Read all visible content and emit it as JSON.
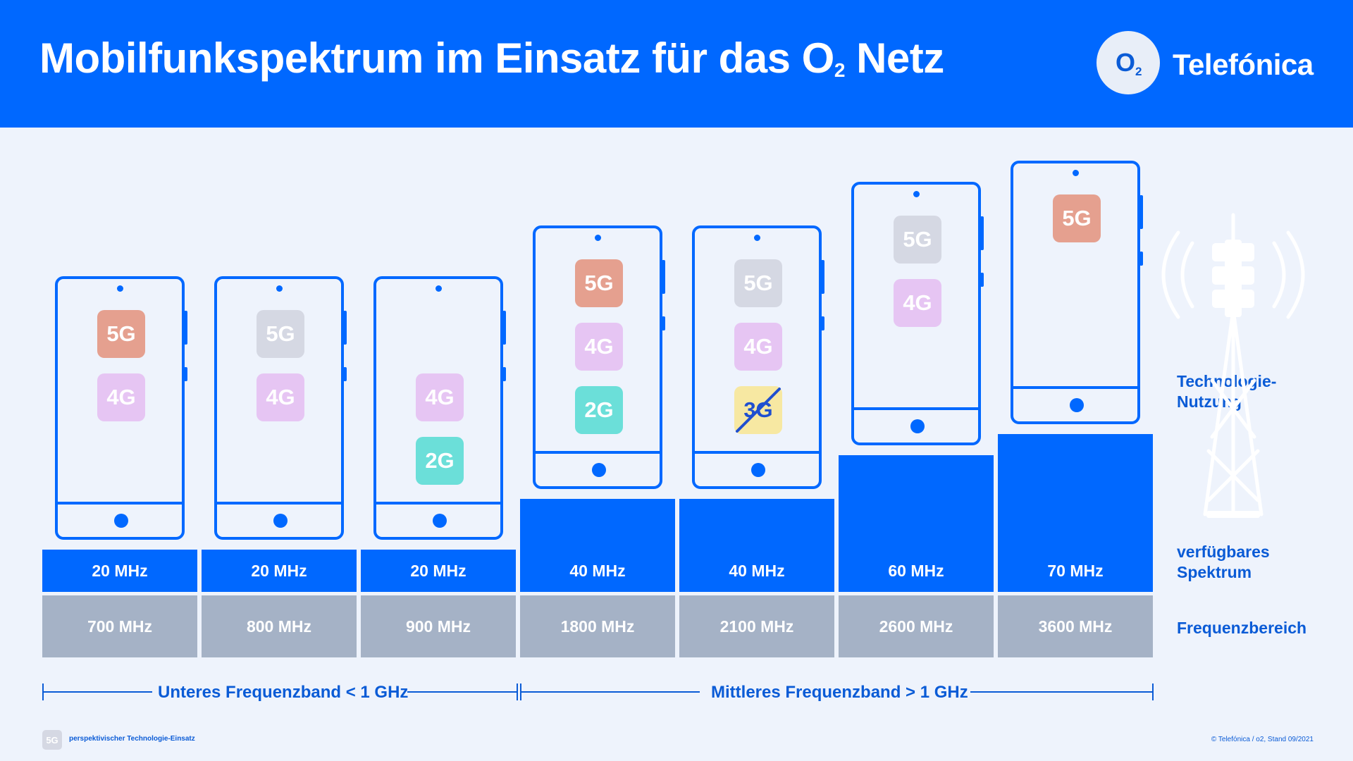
{
  "header": {
    "title_main": "Mobilfunkspektrum im Einsatz für das O",
    "title_sub": "2",
    "title_end": " Netz",
    "logo_mark": "O",
    "logo_sub": "2",
    "brand": "Telefónica"
  },
  "colors": {
    "primary_blue": "#0068ff",
    "tech_5g": "#e5a08f",
    "tech_4g": "#e6c5f3",
    "tech_2g": "#6bdfd9",
    "tech_3g_phased_out": "#f7e8a2",
    "tech_prospective": "#d5d8e3",
    "frequency_gray": "#a5b2c6"
  },
  "columns": [
    {
      "frequency": "700 MHz",
      "bandwidth": "20 MHz",
      "bandwidth_mhz": 20,
      "techs": [
        {
          "label": "5G",
          "kind": "5g"
        },
        {
          "label": "4G",
          "kind": "4g"
        }
      ]
    },
    {
      "frequency": "800 MHz",
      "bandwidth": "20 MHz",
      "bandwidth_mhz": 20,
      "techs": [
        {
          "label": "5G",
          "kind": "prospective"
        },
        {
          "label": "4G",
          "kind": "4g"
        }
      ]
    },
    {
      "frequency": "900 MHz",
      "bandwidth": "20 MHz",
      "bandwidth_mhz": 20,
      "techs": [
        {
          "label": "4G",
          "kind": "4g"
        },
        {
          "label": "2G",
          "kind": "2g"
        }
      ]
    },
    {
      "frequency": "1800 MHz",
      "bandwidth": "40 MHz",
      "bandwidth_mhz": 40,
      "techs": [
        {
          "label": "5G",
          "kind": "5g"
        },
        {
          "label": "4G",
          "kind": "4g"
        },
        {
          "label": "2G",
          "kind": "2g"
        }
      ]
    },
    {
      "frequency": "2100 MHz",
      "bandwidth": "40 MHz",
      "bandwidth_mhz": 40,
      "techs": [
        {
          "label": "5G",
          "kind": "prospective"
        },
        {
          "label": "4G",
          "kind": "4g"
        },
        {
          "label": "3G",
          "kind": "3g-phased-out"
        }
      ]
    },
    {
      "frequency": "2600 MHz",
      "bandwidth": "60 MHz",
      "bandwidth_mhz": 60,
      "techs": [
        {
          "label": "5G",
          "kind": "prospective"
        },
        {
          "label": "4G",
          "kind": "4g"
        }
      ]
    },
    {
      "frequency": "3600 MHz",
      "bandwidth": "70 MHz",
      "bandwidth_mhz": 70,
      "techs": [
        {
          "label": "5G",
          "kind": "5g"
        }
      ]
    }
  ],
  "row_labels": {
    "technology": "Technologie-\nNutzung",
    "spectrum": "verfügbares\nSpektrum",
    "frequency": "Frequenzbereich"
  },
  "bands": {
    "lower": "Unteres Frequenzband < 1 GHz",
    "middle": "Mittleres Frequenzband > 1 GHz"
  },
  "footer": {
    "legend_box": "5G",
    "legend_text": "perspektivischer Technologie-Einsatz",
    "copyright": "© Telefónica / o2, Stand 09/2021"
  },
  "icons": [
    "cell-tower-icon",
    "smartphone-icon",
    "strikethrough-icon"
  ]
}
